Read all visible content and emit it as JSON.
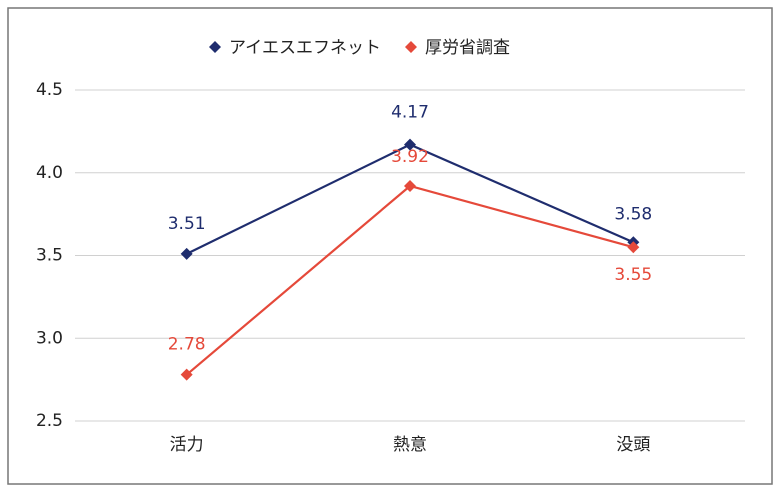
{
  "chart_data": {
    "type": "line",
    "categories": [
      "活力",
      "熱意",
      "没頭"
    ],
    "series": [
      {
        "name": "アイエスエフネット",
        "color": "#1f2d6e",
        "values": [
          3.51,
          4.17,
          3.58
        ]
      },
      {
        "name": "厚労省調査",
        "color": "#e5493a",
        "values": [
          2.78,
          3.92,
          3.55
        ]
      }
    ],
    "ylim": [
      2.5,
      4.5
    ],
    "yticks": [
      2.5,
      {
        "value": 3,
        "label": "3.0"
      },
      3.5,
      {
        "value": 4,
        "label": "4.0"
      },
      4.5
    ],
    "grid": true,
    "legend": "top"
  }
}
